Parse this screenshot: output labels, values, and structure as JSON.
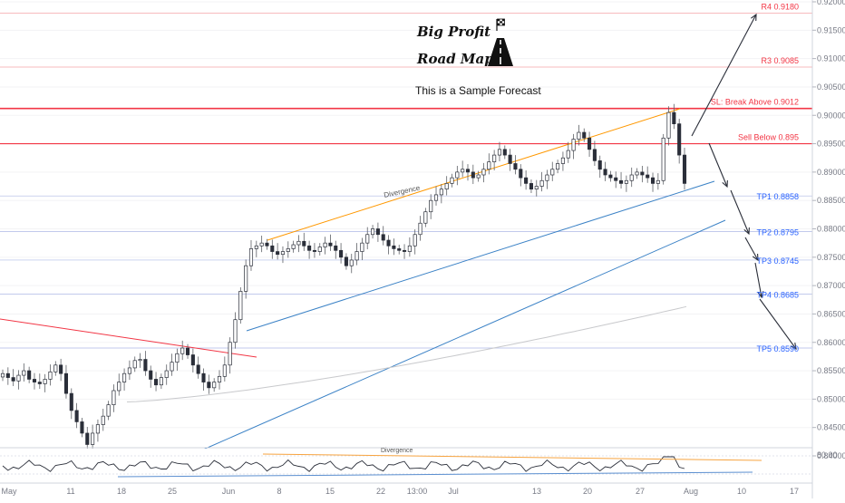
{
  "header": {
    "title_line1": "Big Profit",
    "title_line2": "Road Map",
    "subtitle": "This is a Sample Forecast"
  },
  "levels": [
    {
      "label": "R4 0.9180",
      "value": 0.918,
      "kind": "resistance",
      "color": "#f23645"
    },
    {
      "label": "R3 0.9085",
      "value": 0.9085,
      "kind": "resistance",
      "color": "#f23645"
    },
    {
      "label": "SL: Break Above 0.9012",
      "value": 0.9012,
      "kind": "stoploss",
      "color": "#f23645"
    },
    {
      "label": "Sell Below 0.895",
      "value": 0.895,
      "kind": "entry",
      "color": "#f23645"
    },
    {
      "label": "TP1 0.8858",
      "value": 0.8858,
      "kind": "target",
      "color": "#2962ff"
    },
    {
      "label": "TP2 0.8795",
      "value": 0.8795,
      "kind": "target",
      "color": "#2962ff"
    },
    {
      "label": "TP3 0.8745",
      "value": 0.8745,
      "kind": "target",
      "color": "#2962ff"
    },
    {
      "label": "TP4 0.8685",
      "value": 0.8685,
      "kind": "target",
      "color": "#2962ff"
    },
    {
      "label": "TP5 0.8590",
      "value": 0.859,
      "kind": "target",
      "color": "#2962ff"
    }
  ],
  "annotations": {
    "divergence_price": "Divergence",
    "divergence_rsi": "Divergence",
    "rsi_level": "80.00"
  },
  "chart_data": {
    "type": "candlestick",
    "y_axis": {
      "range": [
        0.8375,
        0.92
      ],
      "ticks": [
        "0.92000",
        "0.91500",
        "0.91000",
        "0.90500",
        "0.90000",
        "0.89500",
        "0.89000",
        "0.88500",
        "0.88000",
        "0.87500",
        "0.87000",
        "0.86500",
        "0.86000",
        "0.85500",
        "0.85000",
        "0.84500",
        "0.84000"
      ]
    },
    "x_axis": {
      "ticks": [
        "May",
        "11",
        "18",
        "25",
        "Jun",
        "8",
        "15",
        "22",
        "13:00",
        "Jul",
        "13",
        "20",
        "27",
        "Aug",
        "10",
        "17"
      ]
    },
    "closes": [
      0.8545,
      0.8538,
      0.8532,
      0.8542,
      0.855,
      0.8535,
      0.853,
      0.8527,
      0.8535,
      0.8548,
      0.856,
      0.8545,
      0.851,
      0.848,
      0.846,
      0.844,
      0.842,
      0.844,
      0.8455,
      0.847,
      0.849,
      0.8515,
      0.853,
      0.8545,
      0.8555,
      0.8568,
      0.857,
      0.855,
      0.8535,
      0.8525,
      0.8538,
      0.855,
      0.8565,
      0.858,
      0.859,
      0.8578,
      0.856,
      0.8545,
      0.853,
      0.852,
      0.853,
      0.854,
      0.856,
      0.86,
      0.864,
      0.869,
      0.8735,
      0.8765,
      0.877,
      0.8775,
      0.877,
      0.876,
      0.8755,
      0.876,
      0.8765,
      0.8772,
      0.8778,
      0.877,
      0.8762,
      0.876,
      0.8768,
      0.8775,
      0.877,
      0.8762,
      0.875,
      0.8735,
      0.8745,
      0.876,
      0.8775,
      0.879,
      0.88,
      0.879,
      0.878,
      0.877,
      0.8765,
      0.8762,
      0.876,
      0.877,
      0.879,
      0.881,
      0.883,
      0.885,
      0.886,
      0.887,
      0.888,
      0.889,
      0.89,
      0.8905,
      0.89,
      0.889,
      0.8895,
      0.8905,
      0.8918,
      0.893,
      0.894,
      0.893,
      0.8915,
      0.8905,
      0.889,
      0.888,
      0.887,
      0.8875,
      0.8885,
      0.8895,
      0.8905,
      0.8915,
      0.8925,
      0.8938,
      0.8958,
      0.897,
      0.896,
      0.894,
      0.892,
      0.8905,
      0.8895,
      0.889,
      0.8885,
      0.888,
      0.8885,
      0.8895,
      0.89,
      0.8895,
      0.889,
      0.888,
      0.8885,
      0.896,
      0.9005,
      0.8985,
      0.893,
      0.888
    ],
    "moving_average": {
      "start": 0.8495,
      "end": 0.8663
    },
    "rsi": {
      "overbought": 80.0
    }
  }
}
